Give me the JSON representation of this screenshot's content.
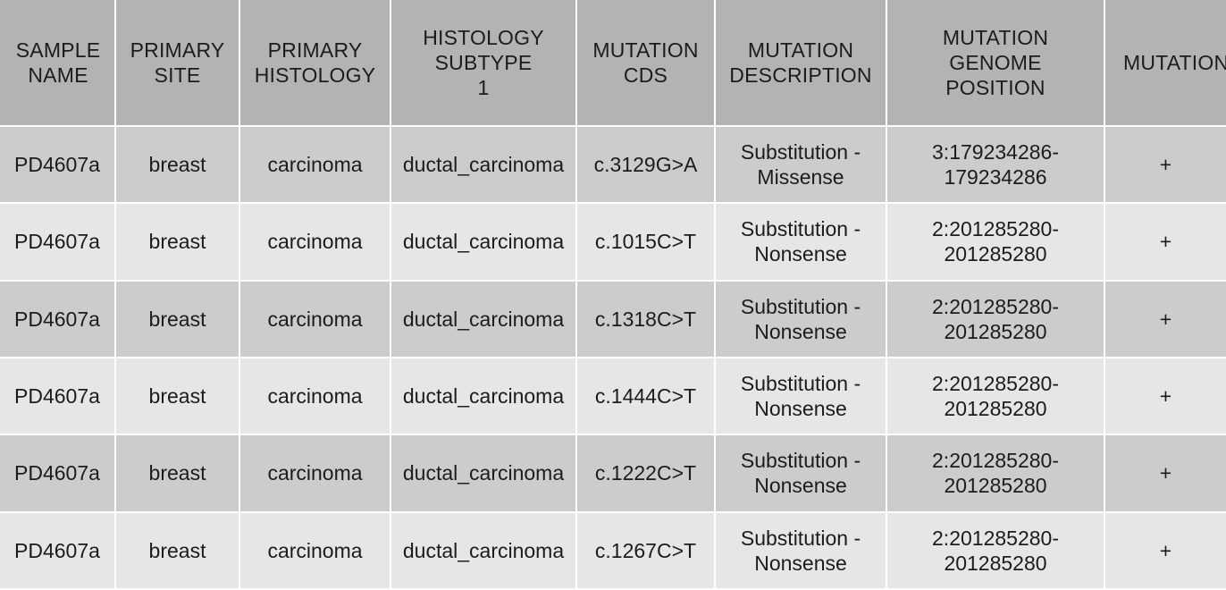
{
  "table": {
    "headers": [
      "SAMPLE\nNAME",
      "PRIMARY\nSITE",
      "PRIMARY\nHISTOLOGY",
      "HISTOLOGY\nSUBTYPE\n1",
      "MUTATION\nCDS",
      "MUTATION\nDESCRIPTION",
      "MUTATION\nGENOME\nPOSITION",
      "MUTATION\nSTRAND"
    ],
    "rows": [
      [
        "PD4607a",
        "breast",
        "carcinoma",
        "ductal_carcinoma",
        "c.3129G>A",
        "Substitution -\nMissense",
        "3:179234286-\n179234286",
        "+"
      ],
      [
        "PD4607a",
        "breast",
        "carcinoma",
        "ductal_carcinoma",
        "c.1015C>T",
        "Substitution -\nNonsense",
        "2:201285280-\n201285280",
        "+"
      ],
      [
        "PD4607a",
        "breast",
        "carcinoma",
        "ductal_carcinoma",
        "c.1318C>T",
        "Substitution -\nNonsense",
        "2:201285280-\n201285280",
        "+"
      ],
      [
        "PD4607a",
        "breast",
        "carcinoma",
        "ductal_carcinoma",
        "c.1444C>T",
        "Substitution -\nNonsense",
        "2:201285280-\n201285280",
        "+"
      ],
      [
        "PD4607a",
        "breast",
        "carcinoma",
        "ductal_carcinoma",
        "c.1222C>T",
        "Substitution -\nNonsense",
        "2:201285280-\n201285280",
        "+"
      ],
      [
        "PD4607a",
        "breast",
        "carcinoma",
        "ductal_carcinoma",
        "c.1267C>T",
        "Substitution -\nNonsense",
        "2:201285280-\n201285280",
        "+"
      ]
    ]
  }
}
